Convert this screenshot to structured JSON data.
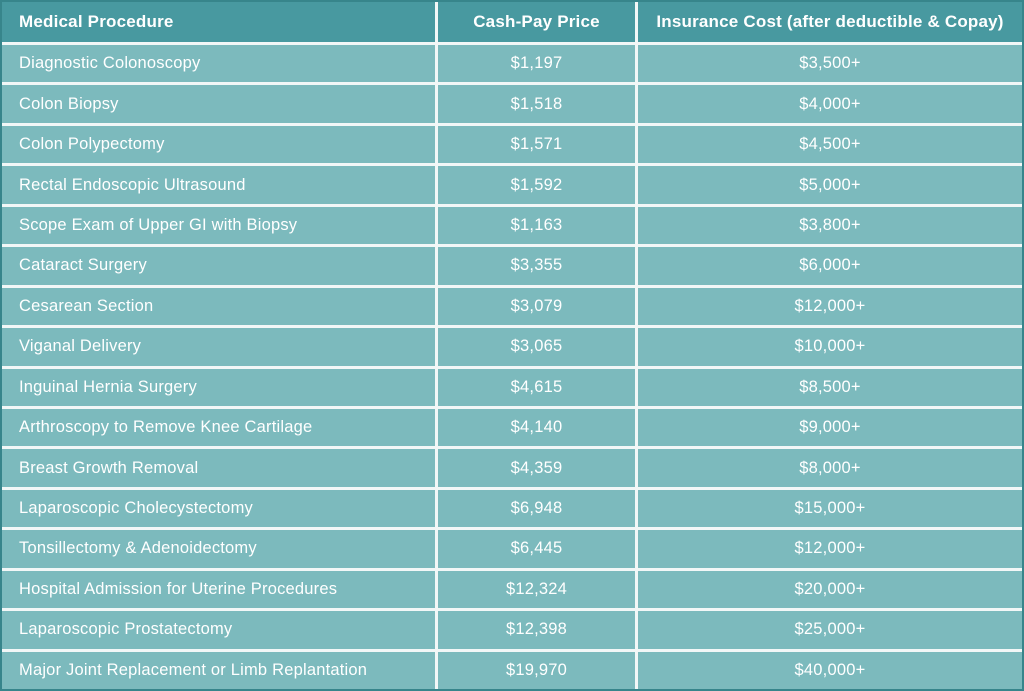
{
  "title": "Medical procedure cash-pay vs insurance cost comparison table",
  "colors": {
    "header_bg": "#4899a0",
    "row_bg": "#7cbabd",
    "grid_line": "#f2f7f7",
    "outer_border": "#37858b",
    "text": "#ffffff"
  },
  "table": {
    "headers": {
      "procedure": "Medical Procedure",
      "cash": "Cash-Pay Price",
      "insurance": "Insurance Cost (after deductible & Copay)"
    },
    "rows": [
      {
        "procedure": "Diagnostic Colonoscopy",
        "cash": "$1,197",
        "insurance": "$3,500+"
      },
      {
        "procedure": "Colon Biopsy",
        "cash": "$1,518",
        "insurance": "$4,000+"
      },
      {
        "procedure": "Colon Polypectomy",
        "cash": "$1,571",
        "insurance": "$4,500+"
      },
      {
        "procedure": "Rectal Endoscopic Ultrasound",
        "cash": "$1,592",
        "insurance": "$5,000+"
      },
      {
        "procedure": "Scope Exam of Upper GI with Biopsy",
        "cash": "$1,163",
        "insurance": "$3,800+"
      },
      {
        "procedure": "Cataract Surgery",
        "cash": "$3,355",
        "insurance": "$6,000+"
      },
      {
        "procedure": "Cesarean Section",
        "cash": "$3,079",
        "insurance": "$12,000+"
      },
      {
        "procedure": "Viganal Delivery",
        "cash": "$3,065",
        "insurance": "$10,000+"
      },
      {
        "procedure": "Inguinal Hernia Surgery",
        "cash": "$4,615",
        "insurance": "$8,500+"
      },
      {
        "procedure": "Arthroscopy to Remove Knee Cartilage",
        "cash": "$4,140",
        "insurance": "$9,000+"
      },
      {
        "procedure": "Breast Growth Removal",
        "cash": "$4,359",
        "insurance": "$8,000+"
      },
      {
        "procedure": "Laparoscopic Cholecystectomy",
        "cash": "$6,948",
        "insurance": "$15,000+"
      },
      {
        "procedure": "Tonsillectomy & Adenoidectomy",
        "cash": "$6,445",
        "insurance": "$12,000+"
      },
      {
        "procedure": "Hospital Admission for Uterine Procedures",
        "cash": "$12,324",
        "insurance": "$20,000+"
      },
      {
        "procedure": "Laparoscopic Prostatectomy",
        "cash": "$12,398",
        "insurance": "$25,000+"
      },
      {
        "procedure": "Major Joint Replacement or Limb Replantation",
        "cash": "$19,970",
        "insurance": "$40,000+"
      }
    ]
  },
  "chart_data": {
    "type": "table",
    "title": "Cash-Pay Price vs Insurance Cost by Medical Procedure",
    "columns": [
      "Medical Procedure",
      "Cash-Pay Price",
      "Insurance Cost (after deductible & Copay)"
    ],
    "categories": [
      "Diagnostic Colonoscopy",
      "Colon Biopsy",
      "Colon Polypectomy",
      "Rectal Endoscopic Ultrasound",
      "Scope Exam of Upper GI with Biopsy",
      "Cataract Surgery",
      "Cesarean Section",
      "Viganal Delivery",
      "Inguinal Hernia Surgery",
      "Arthroscopy to Remove Knee Cartilage",
      "Breast Growth Removal",
      "Laparoscopic Cholecystectomy",
      "Tonsillectomy & Adenoidectomy",
      "Hospital Admission for Uterine Procedures",
      "Laparoscopic Prostatectomy",
      "Major Joint Replacement or Limb Replantation"
    ],
    "series": [
      {
        "name": "Cash-Pay Price (USD)",
        "values": [
          1197,
          1518,
          1571,
          1592,
          1163,
          3355,
          3079,
          3065,
          4615,
          4140,
          4359,
          6948,
          6445,
          12324,
          12398,
          19970
        ]
      },
      {
        "name": "Insurance Cost minimum (USD, after deductible & Copay)",
        "values": [
          3500,
          4000,
          4500,
          5000,
          3800,
          6000,
          12000,
          10000,
          8500,
          9000,
          8000,
          15000,
          12000,
          20000,
          25000,
          40000
        ]
      }
    ]
  }
}
